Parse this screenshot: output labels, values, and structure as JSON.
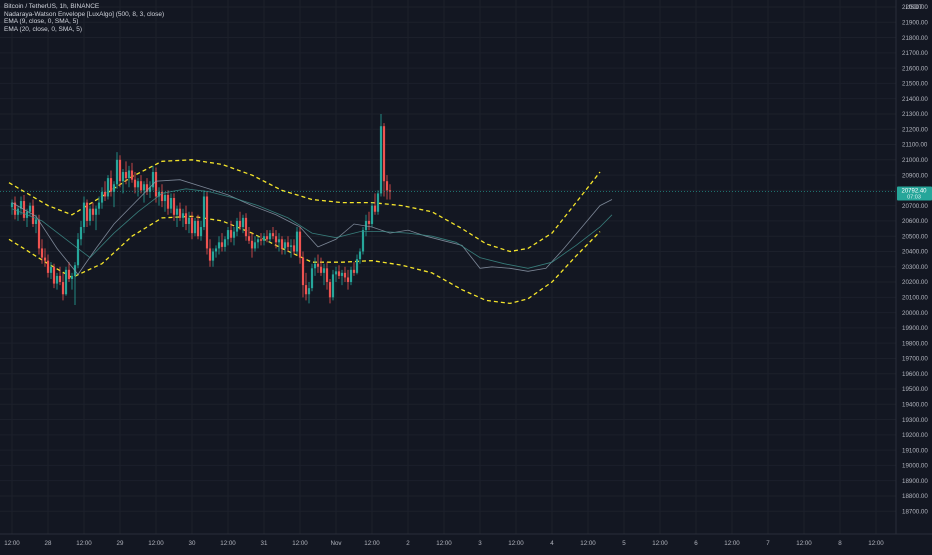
{
  "legend": {
    "symbol": "Bitcoin / TetherUS, 1h, BINANCE",
    "envelope": "Nadaraya-Watson Envelope [LuxAlgo] (500, 8, 3, close)",
    "ema9": "EMA (9, close, 0, SMA, 5)",
    "ema20": "EMA (20, close, 0, SMA, 5)"
  },
  "chart_data": {
    "type": "candlestick",
    "currency": "USDT",
    "ylim": [
      18650,
      22050
    ],
    "y_ticks": [
      22000,
      21900,
      21800,
      21700,
      21600,
      21500,
      21400,
      21300,
      21200,
      21100,
      21000,
      20900,
      20800,
      20700,
      20600,
      20500,
      20400,
      20300,
      20200,
      20100,
      20000,
      19900,
      19800,
      19700,
      19600,
      19500,
      19400,
      19300,
      19200,
      19100,
      19000,
      18900,
      18800,
      18700
    ],
    "y_tick_labels": [
      "22000.00",
      "21900.00",
      "21800.00",
      "21700.00",
      "21600.00",
      "21500.00",
      "21400.00",
      "21300.00",
      "21200.00",
      "21100.00",
      "21000.00",
      "20900.00",
      "20800.00",
      "20700.00",
      "20600.00",
      "20500.00",
      "20400.00",
      "20300.00",
      "20200.00",
      "20100.00",
      "20000.00",
      "19900.00",
      "19800.00",
      "19700.00",
      "19600.00",
      "19500.00",
      "19400.00",
      "19300.00",
      "19200.00",
      "19100.00",
      "19000.00",
      "18900.00",
      "18800.00",
      "18700.00"
    ],
    "x_ticks": [
      {
        "label": "12:00",
        "bar": 0
      },
      {
        "label": "28",
        "bar": 12
      },
      {
        "label": "12:00",
        "bar": 24
      },
      {
        "label": "29",
        "bar": 36
      },
      {
        "label": "12:00",
        "bar": 48
      },
      {
        "label": "30",
        "bar": 60
      },
      {
        "label": "12:00",
        "bar": 72
      },
      {
        "label": "31",
        "bar": 84
      },
      {
        "label": "12:00",
        "bar": 96
      },
      {
        "label": "Nov",
        "bar": 108
      },
      {
        "label": "12:00",
        "bar": 120
      },
      {
        "label": "2",
        "bar": 132
      },
      {
        "label": "12:00",
        "bar": 144
      },
      {
        "label": "3",
        "bar": 156
      },
      {
        "label": "12:00",
        "bar": 168
      },
      {
        "label": "4",
        "bar": 180
      },
      {
        "label": "12:00",
        "bar": 192
      },
      {
        "label": "5",
        "bar": 204
      },
      {
        "label": "12:00",
        "bar": 216
      },
      {
        "label": "6",
        "bar": 228
      },
      {
        "label": "12:00",
        "bar": 240
      },
      {
        "label": "7",
        "bar": 252
      },
      {
        "label": "12:00",
        "bar": 264
      },
      {
        "label": "8",
        "bar": 276
      },
      {
        "label": "12:00",
        "bar": 288
      }
    ],
    "last_price_label": "20792.40",
    "last_price_countdown": "07:03",
    "last_price": 20792.4,
    "series": [
      {
        "name": "Nadaraya-Watson Envelope upper",
        "color": "#f5e52b",
        "style": "dashed",
        "points": [
          [
            -1,
            20850
          ],
          [
            12,
            20700
          ],
          [
            20,
            20640
          ],
          [
            30,
            20760
          ],
          [
            40,
            20890
          ],
          [
            50,
            20990
          ],
          [
            60,
            21000
          ],
          [
            70,
            20970
          ],
          [
            80,
            20900
          ],
          [
            90,
            20800
          ],
          [
            100,
            20740
          ],
          [
            110,
            20720
          ],
          [
            120,
            20720
          ],
          [
            130,
            20700
          ],
          [
            140,
            20660
          ],
          [
            150,
            20550
          ],
          [
            158,
            20450
          ],
          [
            166,
            20400
          ],
          [
            172,
            20420
          ],
          [
            180,
            20520
          ],
          [
            188,
            20720
          ],
          [
            196,
            20920
          ]
        ]
      },
      {
        "name": "Nadaraya-Watson Envelope lower",
        "color": "#f5e52b",
        "style": "dashed",
        "points": [
          [
            -1,
            20480
          ],
          [
            12,
            20320
          ],
          [
            20,
            20230
          ],
          [
            30,
            20320
          ],
          [
            40,
            20500
          ],
          [
            50,
            20620
          ],
          [
            60,
            20630
          ],
          [
            70,
            20600
          ],
          [
            80,
            20520
          ],
          [
            90,
            20420
          ],
          [
            100,
            20330
          ],
          [
            110,
            20330
          ],
          [
            120,
            20340
          ],
          [
            130,
            20310
          ],
          [
            140,
            20260
          ],
          [
            150,
            20150
          ],
          [
            158,
            20080
          ],
          [
            166,
            20060
          ],
          [
            172,
            20090
          ],
          [
            180,
            20200
          ],
          [
            188,
            20370
          ],
          [
            196,
            20530
          ]
        ]
      },
      {
        "name": "EMA (9, close, 0, SMA, 5)",
        "color": "#8e9aaa",
        "style": "solid",
        "points": [
          [
            0,
            20720
          ],
          [
            8,
            20630
          ],
          [
            15,
            20420
          ],
          [
            22,
            20250
          ],
          [
            28,
            20420
          ],
          [
            34,
            20580
          ],
          [
            40,
            20700
          ],
          [
            48,
            20860
          ],
          [
            56,
            20870
          ],
          [
            64,
            20820
          ],
          [
            72,
            20770
          ],
          [
            80,
            20700
          ],
          [
            88,
            20640
          ],
          [
            96,
            20560
          ],
          [
            102,
            20430
          ],
          [
            108,
            20480
          ],
          [
            114,
            20580
          ],
          [
            120,
            20560
          ],
          [
            126,
            20520
          ],
          [
            132,
            20540
          ],
          [
            138,
            20500
          ],
          [
            144,
            20470
          ],
          [
            150,
            20440
          ],
          [
            156,
            20290
          ],
          [
            160,
            20300
          ],
          [
            166,
            20290
          ],
          [
            172,
            20270
          ],
          [
            178,
            20290
          ],
          [
            184,
            20420
          ],
          [
            190,
            20560
          ],
          [
            196,
            20700
          ],
          [
            200,
            20740
          ]
        ]
      },
      {
        "name": "EMA (20, close, 0, SMA, 5)",
        "color": "#3e8e8a",
        "style": "solid",
        "points": [
          [
            0,
            20680
          ],
          [
            10,
            20600
          ],
          [
            18,
            20480
          ],
          [
            26,
            20360
          ],
          [
            34,
            20520
          ],
          [
            42,
            20660
          ],
          [
            50,
            20780
          ],
          [
            58,
            20810
          ],
          [
            66,
            20790
          ],
          [
            74,
            20750
          ],
          [
            82,
            20700
          ],
          [
            92,
            20620
          ],
          [
            100,
            20520
          ],
          [
            108,
            20490
          ],
          [
            116,
            20530
          ],
          [
            124,
            20530
          ],
          [
            132,
            20520
          ],
          [
            140,
            20500
          ],
          [
            148,
            20460
          ],
          [
            156,
            20360
          ],
          [
            164,
            20320
          ],
          [
            172,
            20290
          ],
          [
            180,
            20330
          ],
          [
            188,
            20440
          ],
          [
            196,
            20560
          ],
          [
            200,
            20640
          ]
        ]
      }
    ],
    "candles": [
      [
        20690,
        20740,
        20640,
        20720
      ],
      [
        20720,
        20760,
        20610,
        20640
      ],
      [
        20640,
        20700,
        20600,
        20680
      ],
      [
        20680,
        20760,
        20640,
        20730
      ],
      [
        20730,
        20770,
        20600,
        20620
      ],
      [
        20620,
        20680,
        20560,
        20660
      ],
      [
        20660,
        20720,
        20630,
        20700
      ],
      [
        20700,
        20740,
        20560,
        20580
      ],
      [
        20580,
        20640,
        20520,
        20610
      ],
      [
        20610,
        20640,
        20380,
        20420
      ],
      [
        20420,
        20480,
        20320,
        20360
      ],
      [
        20360,
        20420,
        20300,
        20340
      ],
      [
        20340,
        20380,
        20230,
        20260
      ],
      [
        20260,
        20330,
        20220,
        20300
      ],
      [
        20300,
        20320,
        20160,
        20190
      ],
      [
        20190,
        20260,
        20150,
        20240
      ],
      [
        20240,
        20300,
        20180,
        20200
      ],
      [
        20200,
        20260,
        20080,
        20120
      ],
      [
        20120,
        20300,
        20110,
        20280
      ],
      [
        20280,
        20330,
        20200,
        20220
      ],
      [
        20220,
        20260,
        20150,
        20240
      ],
      [
        20240,
        20330,
        20050,
        20310
      ],
      [
        20310,
        20520,
        20290,
        20480
      ],
      [
        20480,
        20600,
        20440,
        20560
      ],
      [
        20560,
        20760,
        20520,
        20720
      ],
      [
        20720,
        20740,
        20560,
        20600
      ],
      [
        20600,
        20700,
        20570,
        20680
      ],
      [
        20680,
        20720,
        20600,
        20640
      ],
      [
        20640,
        20700,
        20540,
        20680
      ],
      [
        20680,
        20760,
        20640,
        20720
      ],
      [
        20720,
        20820,
        20680,
        20790
      ],
      [
        20790,
        20860,
        20730,
        20760
      ],
      [
        20760,
        20900,
        20740,
        20880
      ],
      [
        20880,
        20930,
        20760,
        20790
      ],
      [
        20790,
        20860,
        20690,
        20840
      ],
      [
        20840,
        21050,
        20810,
        21000
      ],
      [
        21000,
        21030,
        20820,
        20860
      ],
      [
        20860,
        20940,
        20780,
        20920
      ],
      [
        20920,
        20990,
        20840,
        20880
      ],
      [
        20880,
        20960,
        20820,
        20930
      ],
      [
        20930,
        20980,
        20850,
        20870
      ],
      [
        20870,
        20920,
        20780,
        20820
      ],
      [
        20820,
        20880,
        20760,
        20860
      ],
      [
        20860,
        20900,
        20780,
        20800
      ],
      [
        20800,
        20860,
        20720,
        20840
      ],
      [
        20840,
        20880,
        20770,
        20790
      ],
      [
        20790,
        20860,
        20750,
        20820
      ],
      [
        20820,
        20960,
        20800,
        20920
      ],
      [
        20920,
        20950,
        20720,
        20760
      ],
      [
        20760,
        20820,
        20700,
        20790
      ],
      [
        20790,
        20840,
        20690,
        20730
      ],
      [
        20730,
        20790,
        20660,
        20770
      ],
      [
        20770,
        20800,
        20640,
        20680
      ],
      [
        20680,
        20780,
        20650,
        20750
      ],
      [
        20750,
        20780,
        20600,
        20640
      ],
      [
        20640,
        20700,
        20560,
        20680
      ],
      [
        20680,
        20720,
        20600,
        20620
      ],
      [
        20620,
        20680,
        20560,
        20650
      ],
      [
        20650,
        20700,
        20540,
        20580
      ],
      [
        20580,
        20660,
        20520,
        20620
      ],
      [
        20620,
        20660,
        20480,
        20520
      ],
      [
        20520,
        20620,
        20500,
        20600
      ],
      [
        20600,
        20640,
        20480,
        20500
      ],
      [
        20500,
        20600,
        20470,
        20560
      ],
      [
        20560,
        20800,
        20540,
        20760
      ],
      [
        20760,
        20790,
        20380,
        20420
      ],
      [
        20420,
        20480,
        20300,
        20340
      ],
      [
        20340,
        20420,
        20300,
        20400
      ],
      [
        20400,
        20440,
        20360,
        20420
      ],
      [
        20420,
        20500,
        20380,
        20460
      ],
      [
        20460,
        20520,
        20400,
        20430
      ],
      [
        20430,
        20500,
        20400,
        20480
      ],
      [
        20480,
        20560,
        20440,
        20540
      ],
      [
        20540,
        20600,
        20460,
        20490
      ],
      [
        20490,
        20560,
        20440,
        20530
      ],
      [
        20530,
        20620,
        20500,
        20600
      ],
      [
        20600,
        20660,
        20540,
        20560
      ],
      [
        20560,
        20640,
        20520,
        20620
      ],
      [
        20620,
        20650,
        20470,
        20500
      ],
      [
        20500,
        20560,
        20450,
        20470
      ],
      [
        20470,
        20520,
        20360,
        20420
      ],
      [
        20420,
        20500,
        20400,
        20460
      ],
      [
        20460,
        20500,
        20420,
        20480
      ],
      [
        20480,
        20520,
        20440,
        20470
      ],
      [
        20470,
        20520,
        20440,
        20500
      ],
      [
        20500,
        20540,
        20460,
        20480
      ],
      [
        20480,
        20540,
        20460,
        20520
      ],
      [
        20520,
        20560,
        20480,
        20500
      ],
      [
        20500,
        20540,
        20420,
        20460
      ],
      [
        20460,
        20520,
        20400,
        20480
      ],
      [
        20480,
        20500,
        20380,
        20420
      ],
      [
        20420,
        20480,
        20380,
        20460
      ],
      [
        20460,
        20500,
        20400,
        20430
      ],
      [
        20430,
        20480,
        20360,
        20440
      ],
      [
        20440,
        20480,
        20380,
        20400
      ],
      [
        20400,
        20560,
        20380,
        20530
      ],
      [
        20530,
        20560,
        20320,
        20360
      ],
      [
        20360,
        20400,
        20100,
        20180
      ],
      [
        20180,
        20260,
        20080,
        20120
      ],
      [
        20120,
        20200,
        20060,
        20160
      ],
      [
        20160,
        20320,
        20140,
        20290
      ],
      [
        20290,
        20360,
        20240,
        20320
      ],
      [
        20320,
        20380,
        20260,
        20300
      ],
      [
        20300,
        20360,
        20240,
        20260
      ],
      [
        20260,
        20320,
        20180,
        20290
      ],
      [
        20290,
        20330,
        20150,
        20200
      ],
      [
        20200,
        20220,
        20060,
        20100
      ],
      [
        20100,
        20280,
        20080,
        20250
      ],
      [
        20250,
        20300,
        20200,
        20270
      ],
      [
        20270,
        20310,
        20220,
        20240
      ],
      [
        20240,
        20280,
        20180,
        20260
      ],
      [
        20260,
        20300,
        20200,
        20230
      ],
      [
        20230,
        20280,
        20150,
        20200
      ],
      [
        20200,
        20300,
        20180,
        20280
      ],
      [
        20280,
        20330,
        20240,
        20260
      ],
      [
        20260,
        20380,
        20250,
        20350
      ],
      [
        20350,
        20420,
        20320,
        20400
      ],
      [
        20400,
        20560,
        20380,
        20540
      ],
      [
        20540,
        20640,
        20500,
        20600
      ],
      [
        20600,
        20660,
        20540,
        20580
      ],
      [
        20580,
        20720,
        20560,
        20700
      ],
      [
        20700,
        20780,
        20640,
        20660
      ],
      [
        20660,
        20800,
        20640,
        20780
      ],
      [
        20780,
        21300,
        20760,
        21220
      ],
      [
        21220,
        21240,
        20760,
        20860
      ],
      [
        20860,
        20900,
        20740,
        20800
      ],
      [
        20800,
        20840,
        20740,
        20792.4
      ]
    ]
  }
}
